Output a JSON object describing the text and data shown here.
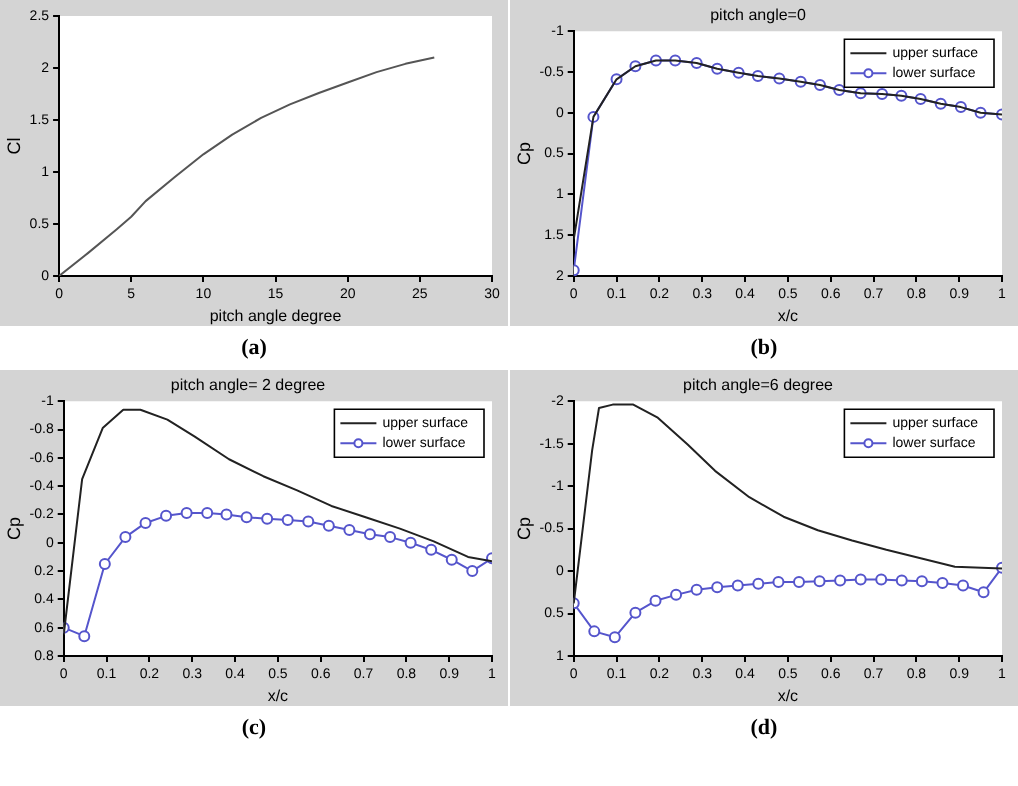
{
  "chart_data": [
    {
      "type": "line",
      "xlabel": "pitch angle degree",
      "ylabel": "Cl",
      "xlim": [
        0,
        30
      ],
      "xticks": [
        0,
        5,
        10,
        15,
        20,
        25,
        30
      ],
      "ylim": [
        0,
        2.5
      ],
      "yticks": [
        0,
        0.5,
        1,
        1.5,
        2,
        2.5
      ],
      "annotations": [
        "(a)"
      ],
      "series": [
        {
          "color": "#555555",
          "x": [
            0,
            2,
            4,
            5,
            6,
            8,
            10,
            12,
            14,
            16,
            18,
            20,
            22,
            24,
            26
          ],
          "values": [
            0,
            0.22,
            0.45,
            0.57,
            0.72,
            0.95,
            1.17,
            1.36,
            1.52,
            1.65,
            1.76,
            1.86,
            1.96,
            2.04,
            2.1
          ]
        }
      ]
    },
    {
      "type": "line",
      "title": "pitch angle=0",
      "xlabel": "x/c",
      "ylabel": "Cp",
      "xlim": [
        0,
        1
      ],
      "xticks": [
        0,
        0.1,
        0.2,
        0.3,
        0.4,
        0.5,
        0.6,
        0.7,
        0.8,
        0.9,
        1
      ],
      "ylim": [
        2,
        -1
      ],
      "yticks": [
        -1,
        -0.5,
        0,
        0.5,
        1,
        1.5,
        2
      ],
      "legend": "top right",
      "annotations": [
        "(b)"
      ],
      "series": [
        {
          "name": "upper surface",
          "color": "#222222",
          "marker": "none",
          "x": [
            0,
            0.046,
            0.1,
            0.144,
            0.192,
            0.237,
            0.287,
            0.335,
            0.385,
            0.43,
            0.48,
            0.53,
            0.575,
            0.62,
            0.67,
            0.72,
            0.765,
            0.81,
            0.857,
            0.904,
            0.95,
            1
          ],
          "values": [
            1.55,
            0.05,
            -0.41,
            -0.57,
            -0.64,
            -0.64,
            -0.61,
            -0.54,
            -0.49,
            -0.45,
            -0.42,
            -0.38,
            -0.34,
            -0.28,
            -0.24,
            -0.23,
            -0.21,
            -0.17,
            -0.11,
            -0.07,
            0.0,
            0.02
          ]
        },
        {
          "name": "lower surface",
          "color": "#5555cc",
          "marker": "circle",
          "x": [
            0,
            0.046,
            0.1,
            0.144,
            0.192,
            0.237,
            0.287,
            0.335,
            0.385,
            0.43,
            0.48,
            0.53,
            0.575,
            0.62,
            0.67,
            0.72,
            0.765,
            0.81,
            0.857,
            0.904,
            0.95,
            1
          ],
          "values": [
            1.93,
            0.05,
            -0.41,
            -0.57,
            -0.64,
            -0.64,
            -0.61,
            -0.54,
            -0.49,
            -0.45,
            -0.42,
            -0.38,
            -0.34,
            -0.28,
            -0.24,
            -0.23,
            -0.21,
            -0.17,
            -0.11,
            -0.07,
            0.0,
            0.02
          ]
        }
      ]
    },
    {
      "type": "line",
      "title": "pitch angle= 2 degree",
      "xlabel": "x/c",
      "ylabel": "Cp",
      "xlim": [
        0,
        1
      ],
      "xticks": [
        0,
        0.1,
        0.2,
        0.3,
        0.4,
        0.5,
        0.6,
        0.7,
        0.8,
        0.9,
        1
      ],
      "ylim": [
        0.8,
        -1
      ],
      "yticks": [
        -1,
        -0.8,
        -0.6,
        -0.4,
        -0.2,
        0,
        0.2,
        0.4,
        0.6,
        0.8
      ],
      "legend": "top right",
      "annotations": [
        "(c)"
      ],
      "series": [
        {
          "name": "upper surface",
          "color": "#222222",
          "marker": "none",
          "x": [
            0,
            0.043,
            0.091,
            0.139,
            0.179,
            0.242,
            0.306,
            0.386,
            0.466,
            0.545,
            0.625,
            0.705,
            0.785,
            0.864,
            0.944,
            1
          ],
          "values": [
            0.65,
            -0.45,
            -0.81,
            -0.94,
            -0.94,
            -0.87,
            -0.75,
            -0.59,
            -0.47,
            -0.37,
            -0.26,
            -0.18,
            -0.1,
            -0.01,
            0.1,
            0.13
          ]
        },
        {
          "name": "lower surface",
          "color": "#5555cc",
          "marker": "circle",
          "x": [
            0,
            0.048,
            0.096,
            0.144,
            0.191,
            0.239,
            0.287,
            0.335,
            0.38,
            0.427,
            0.475,
            0.523,
            0.571,
            0.619,
            0.667,
            0.715,
            0.762,
            0.81,
            0.858,
            0.906,
            0.954,
            1
          ],
          "values": [
            0.6,
            0.66,
            0.15,
            -0.04,
            -0.14,
            -0.19,
            -0.21,
            -0.21,
            -0.2,
            -0.18,
            -0.17,
            -0.16,
            -0.15,
            -0.12,
            -0.09,
            -0.06,
            -0.04,
            0.0,
            0.05,
            0.12,
            0.2,
            0.11
          ]
        }
      ]
    },
    {
      "type": "line",
      "title": "pitch angle=6 degree",
      "xlabel": "x/c",
      "ylabel": "Cp",
      "xlim": [
        0,
        1
      ],
      "xticks": [
        0,
        0.1,
        0.2,
        0.3,
        0.4,
        0.5,
        0.6,
        0.7,
        0.8,
        0.9,
        1
      ],
      "ylim": [
        1,
        -2
      ],
      "yticks": [
        -2,
        -1.5,
        -1,
        -0.5,
        0,
        0.5,
        1
      ],
      "legend": "top right",
      "annotations": [
        "(d)"
      ],
      "series": [
        {
          "name": "upper surface",
          "color": "#222222",
          "marker": "none",
          "x": [
            0,
            0.043,
            0.059,
            0.091,
            0.139,
            0.195,
            0.266,
            0.33,
            0.41,
            0.49,
            0.57,
            0.65,
            0.73,
            0.81,
            0.89,
            1
          ],
          "values": [
            0.38,
            -1.42,
            -1.92,
            -1.96,
            -1.96,
            -1.81,
            -1.49,
            -1.18,
            -0.87,
            -0.64,
            -0.48,
            -0.36,
            -0.25,
            -0.15,
            -0.05,
            -0.03
          ]
        },
        {
          "name": "lower surface",
          "color": "#5555cc",
          "marker": "circle",
          "x": [
            0,
            0.048,
            0.096,
            0.144,
            0.191,
            0.239,
            0.287,
            0.335,
            0.383,
            0.431,
            0.478,
            0.526,
            0.574,
            0.622,
            0.67,
            0.718,
            0.766,
            0.813,
            0.861,
            0.909,
            0.957,
            1
          ],
          "values": [
            0.38,
            0.71,
            0.78,
            0.49,
            0.35,
            0.28,
            0.22,
            0.19,
            0.17,
            0.15,
            0.13,
            0.13,
            0.12,
            0.11,
            0.1,
            0.1,
            0.11,
            0.12,
            0.14,
            0.17,
            0.25,
            -0.04
          ]
        }
      ]
    }
  ]
}
